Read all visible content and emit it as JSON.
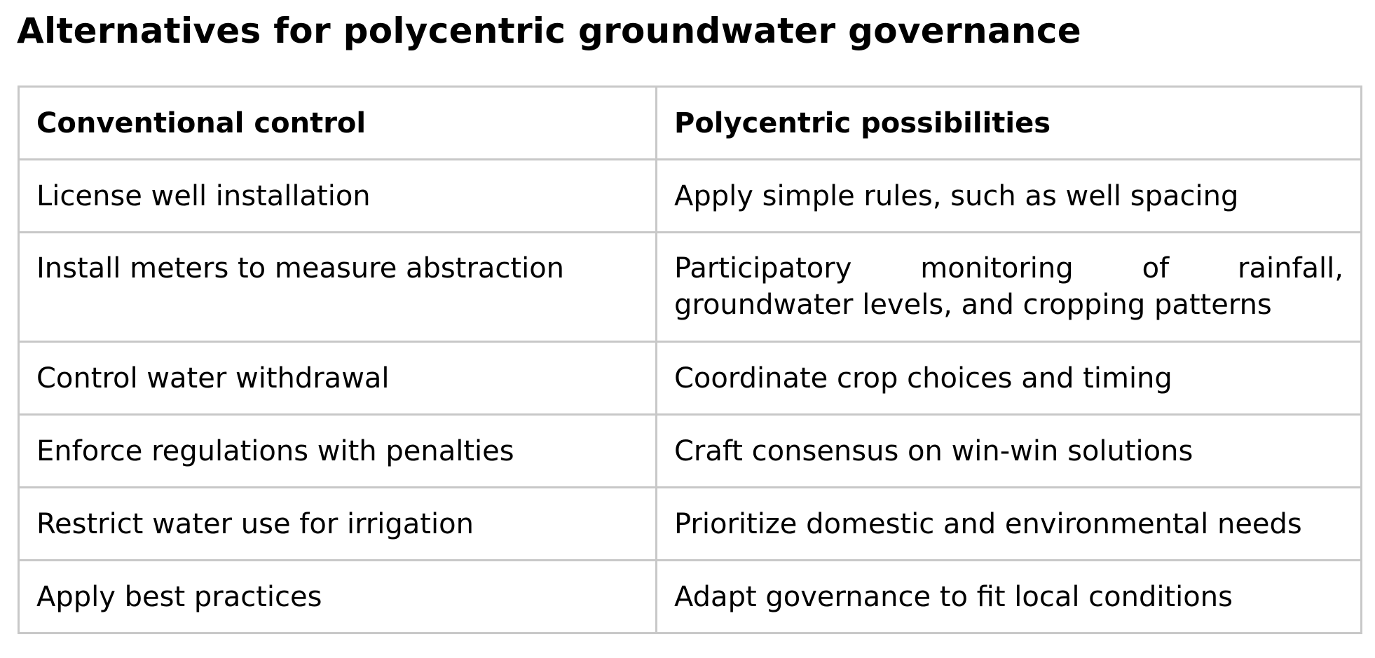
{
  "title": "Alternatives for polycentric groundwater governance",
  "table": {
    "headers": [
      "Conventional control",
      "Polycentric possibilities"
    ],
    "rows": [
      [
        "License well installation",
        "Apply simple rules, such as well spacing"
      ],
      [
        "Install meters to measure abstraction",
        "Participatory monitoring of rainfall, groundwater levels, and cropping patterns"
      ],
      [
        "Control water withdrawal",
        "Coordinate crop choices and timing"
      ],
      [
        "Enforce regulations with penalties",
        "Craft consensus on win-win solutions"
      ],
      [
        "Restrict water use for irrigation",
        "Prioritize domestic and environmental needs"
      ],
      [
        "Apply best practices",
        "Adapt governance to fit local conditions"
      ]
    ]
  }
}
